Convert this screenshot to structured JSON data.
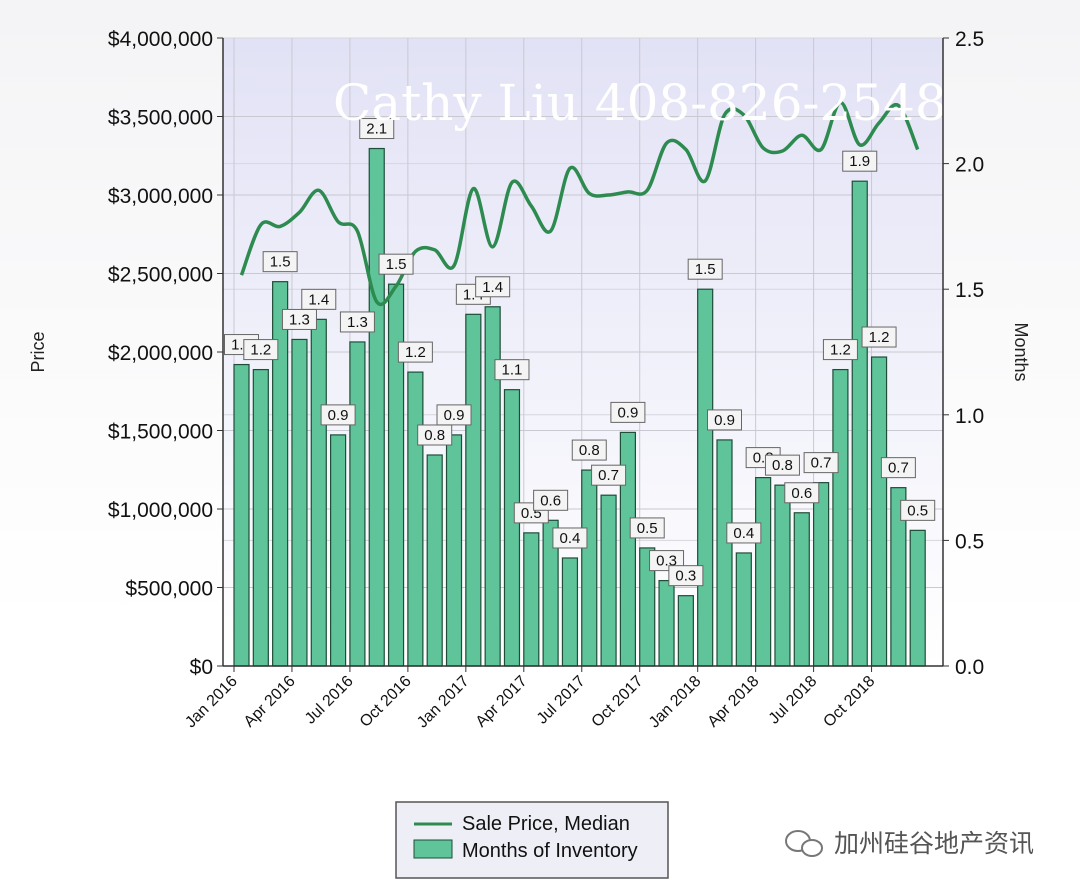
{
  "chart_data": {
    "type": "bar",
    "title": "",
    "left_axis": {
      "label": "Price",
      "min": 0,
      "max": 4000000,
      "ticks": [
        "$0",
        "$500,000",
        "$1,000,000",
        "$1,500,000",
        "$2,000,000",
        "$2,500,000",
        "$3,000,000",
        "$3,500,000",
        "$4,000,000"
      ]
    },
    "right_axis": {
      "label": "Months",
      "min": 0,
      "max": 2.5,
      "ticks": [
        "0.0",
        "0.5",
        "1.0",
        "1.5",
        "2.0",
        "2.5"
      ]
    },
    "x_tick_labels": [
      "Jan 2016",
      "Apr 2016",
      "Jul 2016",
      "Oct 2016",
      "Jan 2017",
      "Apr 2017",
      "Jul 2017",
      "Oct 2017",
      "Jan 2018",
      "Apr 2018",
      "Jul 2018",
      "Oct 2018"
    ],
    "months": [
      "Jan 2016",
      "Feb 2016",
      "Mar 2016",
      "Apr 2016",
      "May 2016",
      "Jun 2016",
      "Jul 2016",
      "Aug 2016",
      "Sep 2016",
      "Oct 2016",
      "Nov 2016",
      "Dec 2016",
      "Jan 2017",
      "Feb 2017",
      "Mar 2017",
      "Apr 2017",
      "May 2017",
      "Jun 2017",
      "Jul 2017",
      "Aug 2017",
      "Sep 2017",
      "Oct 2017",
      "Nov 2017",
      "Dec 2017",
      "Jan 2018",
      "Feb 2018",
      "Mar 2018",
      "Apr 2018",
      "May 2018",
      "Jun 2018",
      "Jul 2018",
      "Aug 2018",
      "Sep 2018",
      "Oct 2018",
      "Nov 2018",
      "Dec 2018"
    ],
    "series": [
      {
        "name": "Months of Inventory",
        "axis": "right",
        "color": "#5fc49a",
        "values": [
          1.2,
          1.2,
          1.5,
          1.3,
          1.4,
          0.9,
          1.3,
          2.1,
          1.5,
          1.2,
          0.8,
          0.9,
          1.4,
          1.4,
          1.1,
          0.5,
          0.6,
          0.4,
          0.8,
          0.7,
          0.9,
          0.5,
          0.3,
          0.3,
          1.5,
          0.9,
          0.4,
          0.8,
          0.8,
          0.6,
          0.7,
          1.2,
          1.9,
          1.2,
          0.7,
          0.5
        ],
        "bar_heights": [
          1.2,
          1.18,
          1.53,
          1.3,
          1.38,
          0.92,
          1.29,
          2.06,
          1.52,
          1.17,
          0.84,
          0.92,
          1.4,
          1.43,
          1.1,
          0.53,
          0.58,
          0.43,
          0.78,
          0.68,
          0.93,
          0.47,
          0.34,
          0.28,
          1.5,
          0.9,
          0.45,
          0.75,
          0.72,
          0.61,
          0.73,
          1.18,
          1.93,
          1.23,
          0.71,
          0.54
        ]
      },
      {
        "name": "Sale Price, Median",
        "axis": "left",
        "color": "#2e8b50",
        "values": [
          2490000,
          2810000,
          2800000,
          2890000,
          3030000,
          2830000,
          2770000,
          2320000,
          2420000,
          2640000,
          2650000,
          2550000,
          3040000,
          2670000,
          3080000,
          2930000,
          2770000,
          3170000,
          3010000,
          3000000,
          3020000,
          3030000,
          3330000,
          3290000,
          3090000,
          3510000,
          3510000,
          3300000,
          3280000,
          3380000,
          3290000,
          3590000,
          3320000,
          3460000,
          3570000,
          3290000
        ]
      }
    ],
    "legend": {
      "position": "bottom-center",
      "entries": [
        "Sale Price, Median",
        "Months of Inventory"
      ]
    },
    "grid": true
  },
  "watermark": "Cathy Liu 408-826-2548",
  "footer_brand": "加州硅谷地产资讯",
  "colors": {
    "plot_bg_top": "#e4e4f7",
    "plot_bg_bottom": "#ffffff",
    "bar_fill": "#5fc49a",
    "bar_stroke": "#1f4d38",
    "line": "#2e8b50"
  }
}
